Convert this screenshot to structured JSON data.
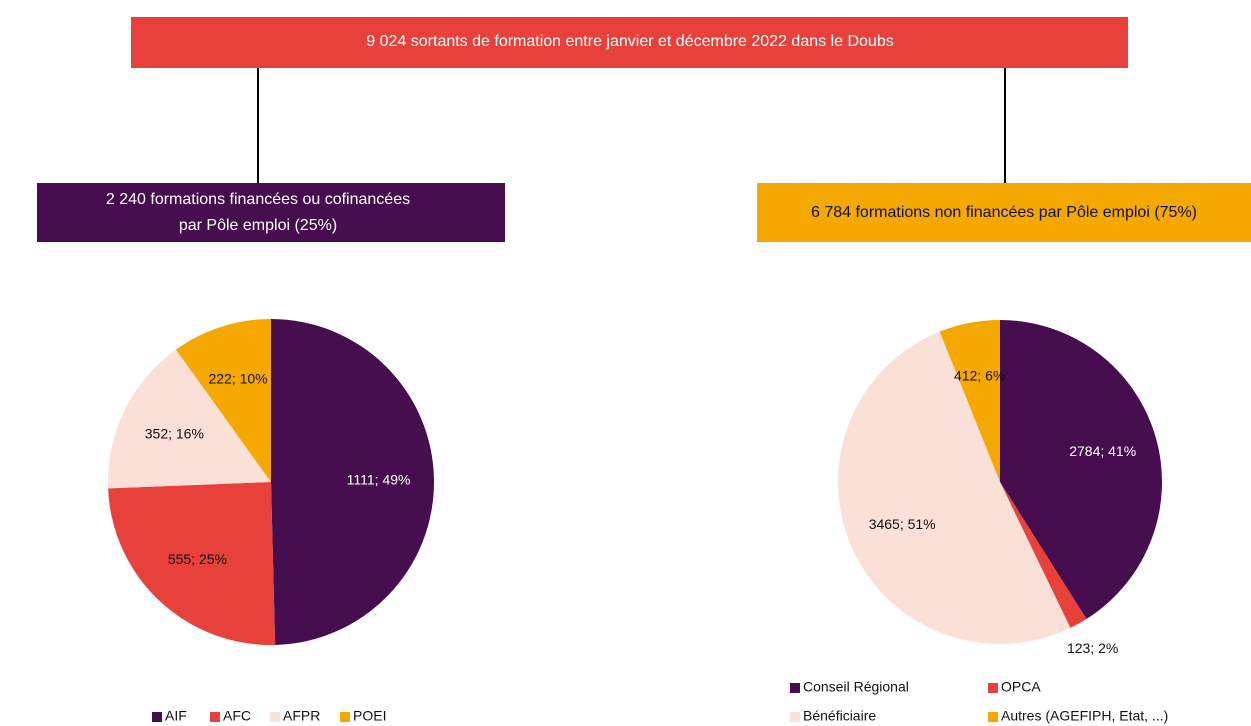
{
  "header": {
    "title": "9 024 sortants de formation entre janvier et décembre 2022 dans le Doubs"
  },
  "left_box": {
    "lines": [
      "2 240 formations financées ou cofinancées",
      "par Pôle emploi (25%)"
    ]
  },
  "right_box": {
    "lines": [
      "6 784 formations non financées par Pôle emploi (75%)"
    ]
  },
  "chart_data": [
    {
      "type": "pie",
      "categories": [
        "AIF",
        "AFC",
        "AFPR",
        "POEI"
      ],
      "values": [
        1111,
        555,
        352,
        222
      ],
      "value_labels": [
        "1111; 49%",
        "555; 25%",
        "352; 16%",
        "222; 10%"
      ],
      "colors": [
        "#460e4f",
        "#e8413c",
        "#fbe0d8",
        "#f5a800"
      ]
    },
    {
      "type": "pie",
      "categories": [
        "Conseil Régional",
        "OPCA",
        "Bénéficiaire",
        "Autres (AGEFIPH, Etat, ...)"
      ],
      "values": [
        2784,
        123,
        3465,
        412
      ],
      "value_labels": [
        "2784; 41%",
        "123; 2%",
        "3465; 51%",
        "412; 6%"
      ],
      "colors": [
        "#460e4f",
        "#e8413c",
        "#fbe0d8",
        "#f5a800"
      ]
    }
  ]
}
